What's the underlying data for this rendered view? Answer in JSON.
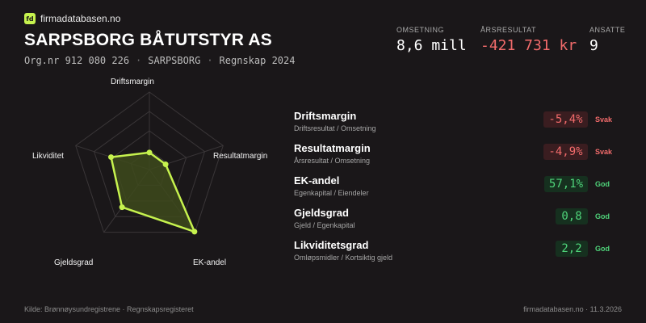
{
  "brand": {
    "logo_text": "fd",
    "name": "firmadatabasen.no",
    "logo_color": "#c6f24e"
  },
  "company": {
    "name": "SARPSBORG BÅTUTSTYR AS",
    "orgnr": "Org.nr 912 080 226",
    "city": "SARPSBORG",
    "period": "Regnskap 2024",
    "separator": "·"
  },
  "kpis": [
    {
      "label": "OMSETNING",
      "value": "8,6 mill"
    },
    {
      "label": "ÅRSRESULTAT",
      "value": "-421 731 kr"
    },
    {
      "label": "ANSATTE",
      "value": "9"
    }
  ],
  "radar": {
    "axes": [
      "Driftsmargin",
      "Resultatmargin",
      "EK-andel",
      "Gjeldsgrad",
      "Likviditet"
    ],
    "levels": [
      0.25,
      0.5,
      0.75,
      1.0
    ],
    "values": [
      0.22,
      0.22,
      0.99,
      0.6,
      0.52
    ],
    "stroke_color": "#c6f24e",
    "fill_color": "#3e4a1c"
  },
  "metrics": [
    {
      "title": "Driftsmargin",
      "subtitle": "Driftsresultat / Omsetning",
      "value": "-5,4%",
      "status": "Svak",
      "rating": "bad"
    },
    {
      "title": "Resultatmargin",
      "subtitle": "Årsresultat / Omsetning",
      "value": "-4,9%",
      "status": "Svak",
      "rating": "bad"
    },
    {
      "title": "EK-andel",
      "subtitle": "Egenkapital / Eiendeler",
      "value": "57,1%",
      "status": "God",
      "rating": "good"
    },
    {
      "title": "Gjeldsgrad",
      "subtitle": "Gjeld / Egenkapital",
      "value": "0,8",
      "status": "God",
      "rating": "good"
    },
    {
      "title": "Likviditetsgrad",
      "subtitle": "Omløpsmidler / Kortsiktig gjeld",
      "value": "2,2",
      "status": "God",
      "rating": "good"
    }
  ],
  "colors": {
    "bad": "#f26b6b",
    "good": "#4fd47a",
    "background": "#1a1719"
  },
  "footer": {
    "source": "Kilde: Brønnøysundregistrene · Regnskapsregisteret",
    "site_date": "firmadatabasen.no · 11.3.2026"
  }
}
